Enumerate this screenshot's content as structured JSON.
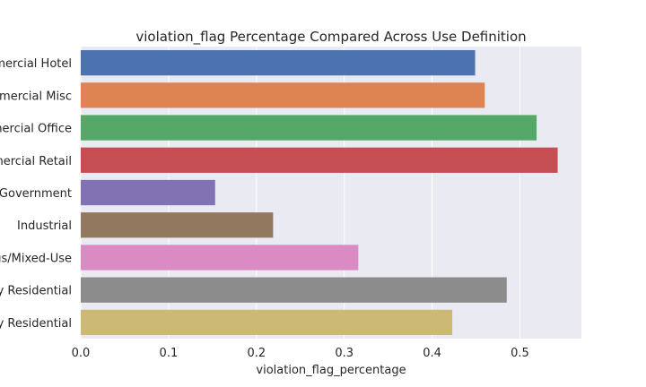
{
  "chart_data": {
    "type": "bar",
    "orientation": "horizontal",
    "title": "violation_flag Percentage Compared Across Use Definition",
    "xlabel": "violation_flag_percentage",
    "ylabel": "",
    "xlim": [
      0,
      0.57
    ],
    "xticks": [
      "0.0",
      "0.1",
      "0.2",
      "0.3",
      "0.4",
      "0.5"
    ],
    "grid": true,
    "categories": [
      "mercial Hotel",
      "nmercial Misc",
      "mercial Office",
      "mercial Retail",
      "Government",
      "Industrial",
      "us/Mixed-Use",
      "y Residential",
      "y Residential"
    ],
    "values": [
      0.449,
      0.46,
      0.519,
      0.543,
      0.153,
      0.219,
      0.316,
      0.485,
      0.423
    ],
    "colors": [
      "#4c72b0",
      "#dd8452",
      "#55a868",
      "#c44e52",
      "#8172b3",
      "#937860",
      "#da8bc3",
      "#8c8c8c",
      "#ccb974"
    ],
    "background": "#eaeaf2"
  }
}
